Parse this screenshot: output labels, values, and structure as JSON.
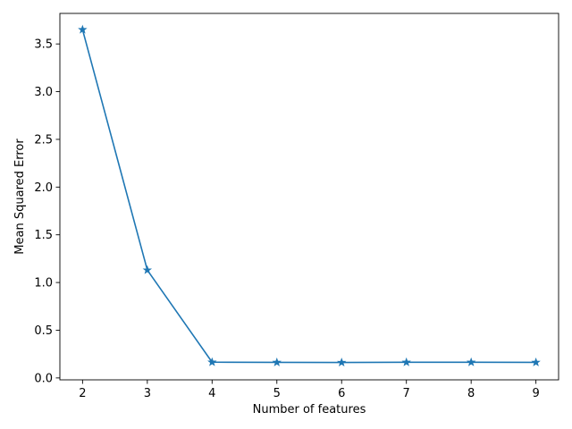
{
  "chart_data": {
    "type": "line",
    "title": "",
    "xlabel": "Number of features",
    "ylabel": "Mean Squared Error",
    "x": [
      2,
      3,
      4,
      5,
      6,
      7,
      8,
      9
    ],
    "series": [
      {
        "values": [
          3.65,
          1.13,
          0.165,
          0.163,
          0.162,
          0.164,
          0.164,
          0.163
        ],
        "color": "#1f77b4",
        "marker": "star"
      }
    ],
    "xlim": [
      1.65,
      9.35
    ],
    "ylim": [
      -0.02,
      3.82
    ],
    "xticks": [
      2,
      3,
      4,
      5,
      6,
      7,
      8,
      9
    ],
    "xtick_labels": [
      "2",
      "3",
      "4",
      "5",
      "6",
      "7",
      "8",
      "9"
    ],
    "yticks": [
      0.0,
      0.5,
      1.0,
      1.5,
      2.0,
      2.5,
      3.0,
      3.5
    ],
    "ytick_labels": [
      "0.0",
      "0.5",
      "1.0",
      "1.5",
      "2.0",
      "2.5",
      "3.0",
      "3.5"
    ],
    "grid": false,
    "legend": false
  }
}
